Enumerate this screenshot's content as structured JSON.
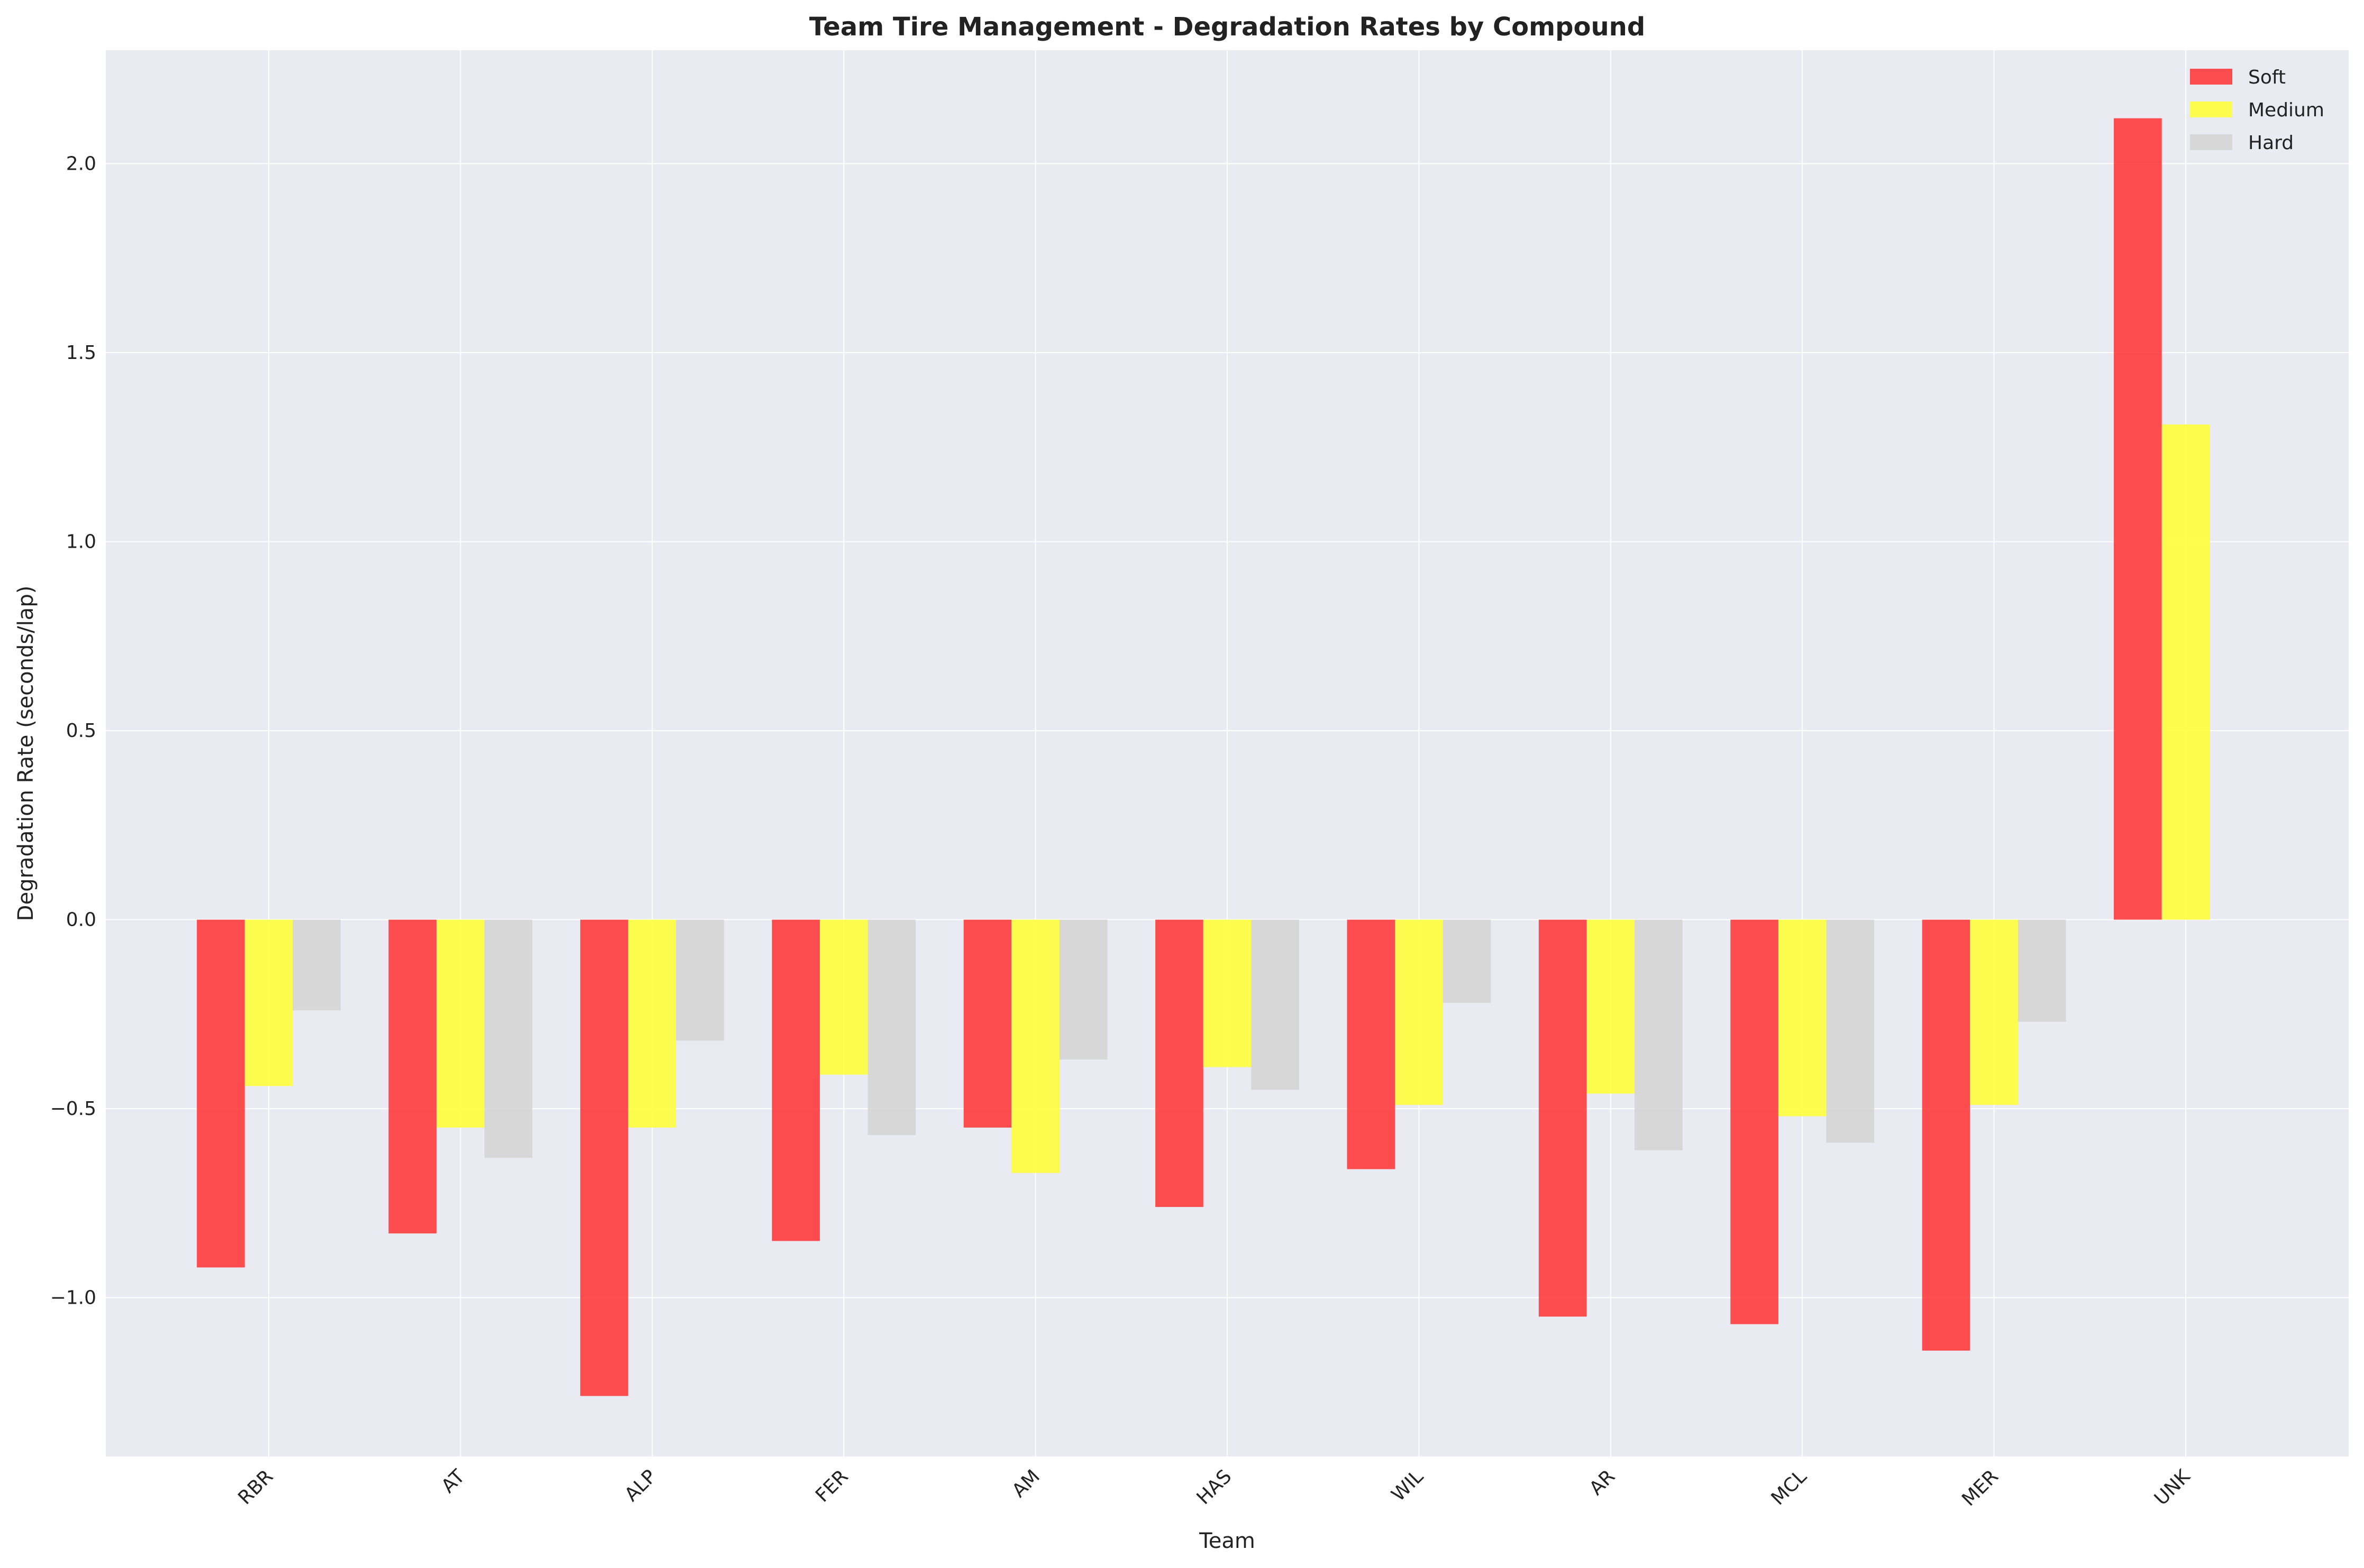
{
  "chart_data": {
    "type": "bar",
    "title": "Team Tire Management - Degradation Rates by Compound",
    "xlabel": "Team",
    "ylabel": "Degradation Rate (seconds/lap)",
    "categories": [
      "RBR",
      "AT",
      "ALP",
      "FER",
      "AM",
      "HAS",
      "WIL",
      "AR",
      "MCL",
      "MER",
      "UNK"
    ],
    "series": [
      {
        "name": "Soft",
        "color": "#ff3030",
        "values": [
          -0.92,
          -0.83,
          -1.26,
          -0.85,
          -0.55,
          -0.76,
          -0.66,
          -1.05,
          -1.07,
          -1.14,
          2.12
        ]
      },
      {
        "name": "Medium",
        "color": "#ffff33",
        "values": [
          -0.44,
          -0.55,
          -0.55,
          -0.41,
          -0.67,
          -0.39,
          -0.49,
          -0.46,
          -0.52,
          -0.49,
          1.31
        ]
      },
      {
        "name": "Hard",
        "color": "#d3d3d3",
        "values": [
          -0.24,
          -0.63,
          -0.32,
          -0.57,
          -0.37,
          -0.45,
          -0.22,
          -0.61,
          -0.59,
          -0.27,
          null
        ]
      }
    ],
    "ylim": [
      -1.42,
      2.3
    ],
    "yticks": [
      -1.0,
      -0.5,
      0.0,
      0.5,
      1.0,
      1.5,
      2.0
    ],
    "ytick_labels": [
      "−1.0",
      "−0.5",
      "0.0",
      "0.5",
      "1.0",
      "1.5",
      "2.0"
    ],
    "grid": true,
    "legend_position": "top-right",
    "background_color": "#eaeaf2",
    "grid_color": "#ffffff"
  }
}
